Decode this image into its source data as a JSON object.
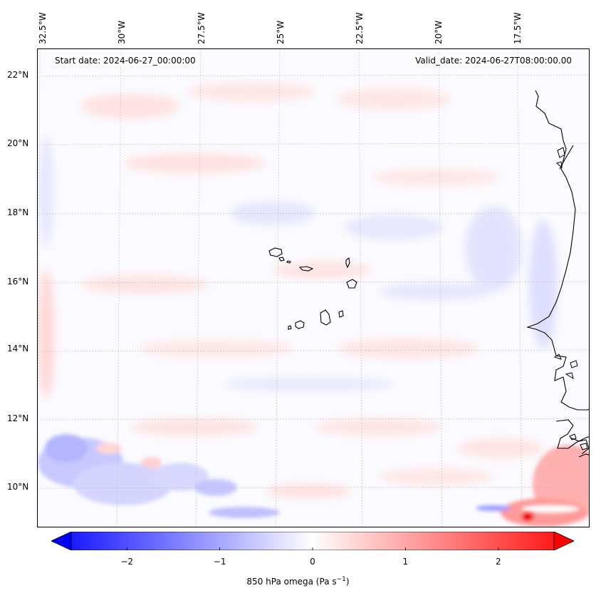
{
  "map": {
    "start_date": "Start date: 2024-06-27_00:00:00",
    "valid_date": "Valid_date: 2024-06-27T08:00:00.00",
    "lon_labels": [
      "32.5°W",
      "30°W",
      "27.5°W",
      "25°W",
      "22.5°W",
      "20°W",
      "17.5°W"
    ],
    "lat_labels": [
      "22°N",
      "20°N",
      "18°N",
      "16°N",
      "14°N",
      "12°N",
      "10°N"
    ],
    "features": [
      "cabo-verde-islands",
      "west-africa-coastline"
    ]
  },
  "colorbar": {
    "label": "850 hPa omega (Pa s",
    "label_unit_sup": "−1",
    "label_close": ")",
    "ticks": [
      "−2",
      "−1",
      "0",
      "1",
      "2"
    ],
    "tick_values": [
      -2,
      -1,
      0,
      1,
      2
    ],
    "range": [
      -2.6,
      2.6
    ],
    "extend": "both",
    "colormap": "bwr",
    "colors": {
      "negative": "#0000ff",
      "zero": "#ffffff",
      "positive": "#ff0000"
    }
  }
}
